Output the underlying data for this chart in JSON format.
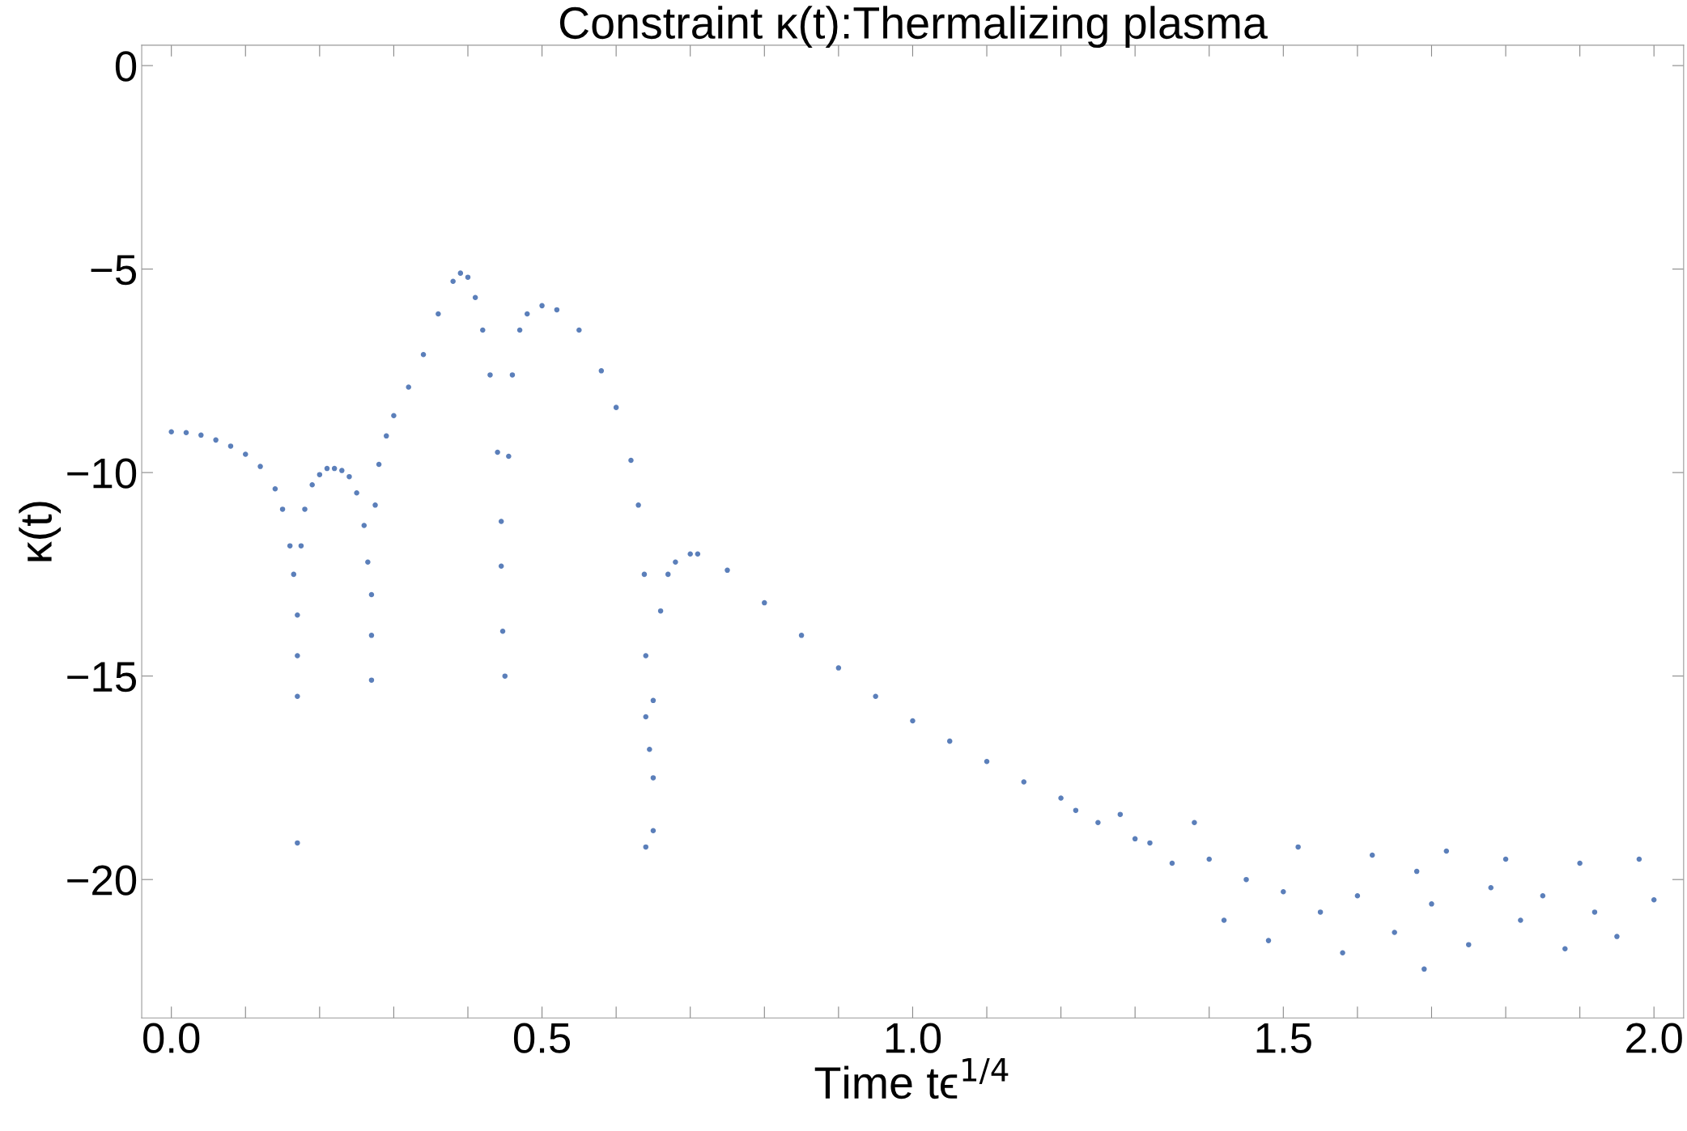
{
  "chart_data": {
    "type": "scatter",
    "title": "Constraint κ(t):Thermalizing plasma",
    "xlabel": "Time tϵ$^{1/4}$",
    "ylabel": "κ(t)",
    "xlim": [
      -0.04,
      2.04
    ],
    "ylim": [
      -23.4,
      0.5
    ],
    "xticks": [
      {
        "value": 0,
        "label": "0.0"
      },
      {
        "value": 0.1,
        "label": null
      },
      {
        "value": 0.2,
        "label": null
      },
      {
        "value": 0.3,
        "label": null
      },
      {
        "value": 0.4,
        "label": null
      },
      {
        "value": 0.5,
        "label": "0.5"
      },
      {
        "value": 0.6,
        "label": null
      },
      {
        "value": 0.7,
        "label": null
      },
      {
        "value": 0.8,
        "label": null
      },
      {
        "value": 0.9,
        "label": null
      },
      {
        "value": 1,
        "label": "1.0"
      },
      {
        "value": 1.1,
        "label": null
      },
      {
        "value": 1.2,
        "label": null
      },
      {
        "value": 1.3,
        "label": null
      },
      {
        "value": 1.4,
        "label": null
      },
      {
        "value": 1.5,
        "label": "1.5"
      },
      {
        "value": 1.6,
        "label": null
      },
      {
        "value": 1.7,
        "label": null
      },
      {
        "value": 1.8,
        "label": null
      },
      {
        "value": 1.9,
        "label": null
      },
      {
        "value": 2,
        "label": "2.0"
      }
    ],
    "yticks": [
      {
        "value": 0,
        "label": "0"
      },
      {
        "value": -5,
        "label": "−5"
      },
      {
        "value": -10,
        "label": "−10"
      },
      {
        "value": -15,
        "label": "−15"
      },
      {
        "value": -20,
        "label": "−20"
      }
    ],
    "grid": false,
    "marker": "circle",
    "series": [
      {
        "color": "#5b7fba",
        "x": [
          0,
          0.02,
          0.04,
          0.06,
          0.08,
          0.1,
          0.12,
          0.14,
          0.15,
          0.16,
          0.165,
          0.17,
          0.17,
          0.17,
          0.17,
          0.175,
          0.18,
          0.19,
          0.2,
          0.21,
          0.22,
          0.23,
          0.24,
          0.25,
          0.26,
          0.265,
          0.27,
          0.27,
          0.27,
          0.275,
          0.28,
          0.29,
          0.3,
          0.32,
          0.34,
          0.36,
          0.38,
          0.39,
          0.4,
          0.41,
          0.42,
          0.43,
          0.44,
          0.445,
          0.445,
          0.447,
          0.45,
          0.455,
          0.46,
          0.47,
          0.48,
          0.5,
          0.52,
          0.55,
          0.58,
          0.6,
          0.62,
          0.63,
          0.638,
          0.64,
          0.64,
          0.64,
          0.645,
          0.65,
          0.65,
          0.65,
          0.66,
          0.67,
          0.68,
          0.7,
          0.71,
          0.75,
          0.8,
          0.85,
          0.9,
          0.95,
          1.0,
          1.05,
          1.1,
          1.15,
          1.2,
          1.22,
          1.25,
          1.28,
          1.3,
          1.32,
          1.35,
          1.38,
          1.4,
          1.42,
          1.45,
          1.48,
          1.5,
          1.52,
          1.55,
          1.58,
          1.6,
          1.62,
          1.65,
          1.68,
          1.69,
          1.7,
          1.72,
          1.75,
          1.78,
          1.8,
          1.82,
          1.85,
          1.88,
          1.9,
          1.92,
          1.95,
          1.98,
          2.0
        ],
        "values": [
          -9.0,
          -9.02,
          -9.08,
          -9.2,
          -9.35,
          -9.55,
          -9.85,
          -10.4,
          -10.9,
          -11.8,
          -12.5,
          -13.5,
          -14.5,
          -15.5,
          -19.1,
          -11.8,
          -10.9,
          -10.3,
          -10.05,
          -9.9,
          -9.9,
          -9.95,
          -10.1,
          -10.5,
          -11.3,
          -12.2,
          -13.0,
          -14.0,
          -15.1,
          -10.8,
          -9.8,
          -9.1,
          -8.6,
          -7.9,
          -7.1,
          -6.1,
          -5.3,
          -5.1,
          -5.2,
          -5.7,
          -6.5,
          -7.6,
          -9.5,
          -11.2,
          -12.3,
          -13.9,
          -15.0,
          -9.6,
          -7.6,
          -6.5,
          -6.1,
          -5.9,
          -6.0,
          -6.5,
          -7.5,
          -8.4,
          -9.7,
          -10.8,
          -12.5,
          -14.5,
          -16.0,
          -19.2,
          -16.8,
          -15.6,
          -17.5,
          -18.8,
          -13.4,
          -12.5,
          -12.2,
          -12.0,
          -12.0,
          -12.4,
          -13.2,
          -14.0,
          -14.8,
          -15.5,
          -16.1,
          -16.6,
          -17.1,
          -17.6,
          -18.0,
          -18.3,
          -18.6,
          -18.4,
          -19.0,
          -19.1,
          -19.6,
          -18.6,
          -19.5,
          -21.0,
          -20.0,
          -21.5,
          -20.3,
          -19.2,
          -20.8,
          -21.8,
          -20.4,
          -19.4,
          -21.3,
          -19.8,
          -22.2,
          -20.6,
          -19.3,
          -21.6,
          -20.2,
          -19.5,
          -21.0,
          -20.4,
          -21.7,
          -19.6,
          -20.8,
          -21.4,
          -19.5,
          -20.5
        ]
      }
    ]
  }
}
